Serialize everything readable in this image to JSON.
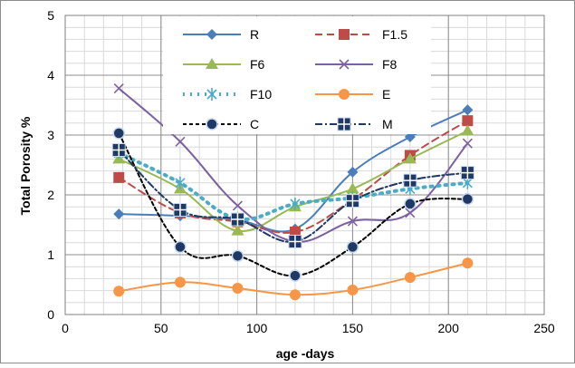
{
  "chart_data": {
    "type": "line",
    "title": "",
    "xlabel": "age -days",
    "ylabel": "Total Porosity %",
    "xlim": [
      0,
      250
    ],
    "ylim": [
      0,
      5
    ],
    "x_ticks": [
      "0",
      "50",
      "100",
      "150",
      "200",
      "250"
    ],
    "y_ticks": [
      "0",
      "1",
      "2",
      "3",
      "4",
      "5"
    ],
    "grid": true,
    "minor_grid": true,
    "legend_position": "top-center",
    "series": [
      {
        "name": "R",
        "color": "#4a7ebb",
        "dash": "solid",
        "width": 2,
        "marker": "diamond",
        "x": [
          28,
          60,
          90,
          120,
          150,
          180,
          210
        ],
        "y": [
          1.68,
          1.65,
          1.58,
          1.43,
          2.38,
          2.97,
          3.42
        ]
      },
      {
        "name": "F1.5",
        "color": "#be4b48",
        "dash": "dash",
        "width": 2,
        "marker": "square",
        "x": [
          28,
          60,
          90,
          120,
          150,
          180,
          210
        ],
        "y": [
          2.29,
          1.7,
          1.55,
          1.38,
          1.92,
          2.66,
          3.24
        ]
      },
      {
        "name": "F6",
        "color": "#98b954",
        "dash": "solid",
        "width": 2,
        "marker": "triangle",
        "x": [
          28,
          60,
          90,
          120,
          150,
          180,
          210
        ],
        "y": [
          2.6,
          2.1,
          1.4,
          1.8,
          2.1,
          2.6,
          3.07
        ]
      },
      {
        "name": "F8",
        "color": "#7d60a0",
        "dash": "solid",
        "width": 2,
        "marker": "x",
        "x": [
          28,
          60,
          90,
          120,
          150,
          180,
          210
        ],
        "y": [
          3.78,
          2.89,
          1.82,
          1.22,
          1.56,
          1.7,
          2.86
        ]
      },
      {
        "name": "F10",
        "color": "#4bacc6",
        "dash": "dot",
        "width": 4,
        "marker": "star",
        "x": [
          28,
          60,
          90,
          120,
          150,
          180,
          210
        ],
        "y": [
          2.7,
          2.2,
          1.6,
          1.85,
          1.95,
          2.1,
          2.2
        ]
      },
      {
        "name": "E",
        "color": "#f79646",
        "dash": "solid",
        "width": 2,
        "marker": "circle",
        "x": [
          28,
          60,
          90,
          120,
          150,
          180,
          210
        ],
        "y": [
          0.39,
          0.54,
          0.44,
          0.33,
          0.41,
          0.62,
          0.86
        ]
      },
      {
        "name": "C",
        "color": "#000000",
        "dash": "dashfine",
        "width": 2,
        "marker": "circle-filled",
        "x": [
          28,
          60,
          90,
          120,
          150,
          180,
          210
        ],
        "y": [
          3.03,
          1.13,
          0.98,
          0.65,
          1.13,
          1.85,
          1.93
        ]
      },
      {
        "name": "M",
        "color": "#1f3864",
        "dash": "dashdot",
        "width": 2,
        "marker": "square-plus",
        "x": [
          28,
          60,
          90,
          120,
          150,
          180,
          210
        ],
        "y": [
          2.75,
          1.75,
          1.59,
          1.22,
          1.9,
          2.24,
          2.37
        ]
      }
    ]
  }
}
